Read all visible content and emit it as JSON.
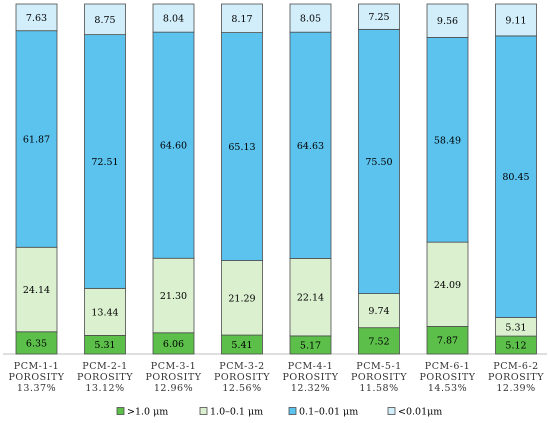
{
  "chart_data": {
    "type": "bar",
    "stacked": true,
    "normalized_to": 100,
    "categories": [
      [
        "PCM-1-1",
        "POROSITY",
        "13.37%"
      ],
      [
        "PCM-2-1",
        "POROSITY",
        "13.12%"
      ],
      [
        "PCM-3-1",
        "POROSITY",
        "12.96%"
      ],
      [
        "PCM-3-2",
        "POROSITY",
        "12.56%"
      ],
      [
        "PCM-4-1",
        "POROSITY",
        "12.32%"
      ],
      [
        "PCM-5-1",
        "POROSITY",
        "11.58%"
      ],
      [
        "PCM-6-1",
        "POROSITY",
        "14.53%"
      ],
      [
        "PCM-6-2",
        "POROSITY",
        "12.39%"
      ]
    ],
    "series": [
      {
        "name": ">1.0 μm",
        "color": "#5cbf4a",
        "values": [
          6.35,
          5.31,
          6.06,
          5.41,
          5.17,
          7.52,
          7.87,
          5.12
        ],
        "labels": [
          "6.35",
          "5.31",
          "6.06",
          "5.41",
          "5.17",
          "7.52",
          "7.87",
          "5.12"
        ]
      },
      {
        "name": "1.0–0.1 μm",
        "color": "#daf0cf",
        "values": [
          24.14,
          13.44,
          21.3,
          21.29,
          22.14,
          9.74,
          24.09,
          5.31
        ],
        "labels": [
          "24.14",
          "13.44",
          "21.30",
          "21.29",
          "22.14",
          "9.74",
          "24.09",
          "5.31"
        ]
      },
      {
        "name": "0.1–0.01 μm",
        "color": "#5bc3ee",
        "values": [
          61.87,
          72.51,
          64.6,
          65.13,
          64.63,
          75.5,
          58.49,
          80.45
        ],
        "labels": [
          "61.87",
          "72.51",
          "64.60",
          "65.13",
          "64.63",
          "75.50",
          "58.49",
          "80.45"
        ]
      },
      {
        "name": "<0.01μm",
        "color": "#d2eefa",
        "values": [
          7.63,
          8.75,
          8.04,
          8.17,
          8.05,
          7.25,
          9.56,
          9.11
        ],
        "labels": [
          "7.63",
          "8.75",
          "8.04",
          "8.17",
          "8.05",
          "7.25",
          "9.56",
          "9.11"
        ]
      }
    ],
    "legend_position": "bottom",
    "grid": false
  }
}
